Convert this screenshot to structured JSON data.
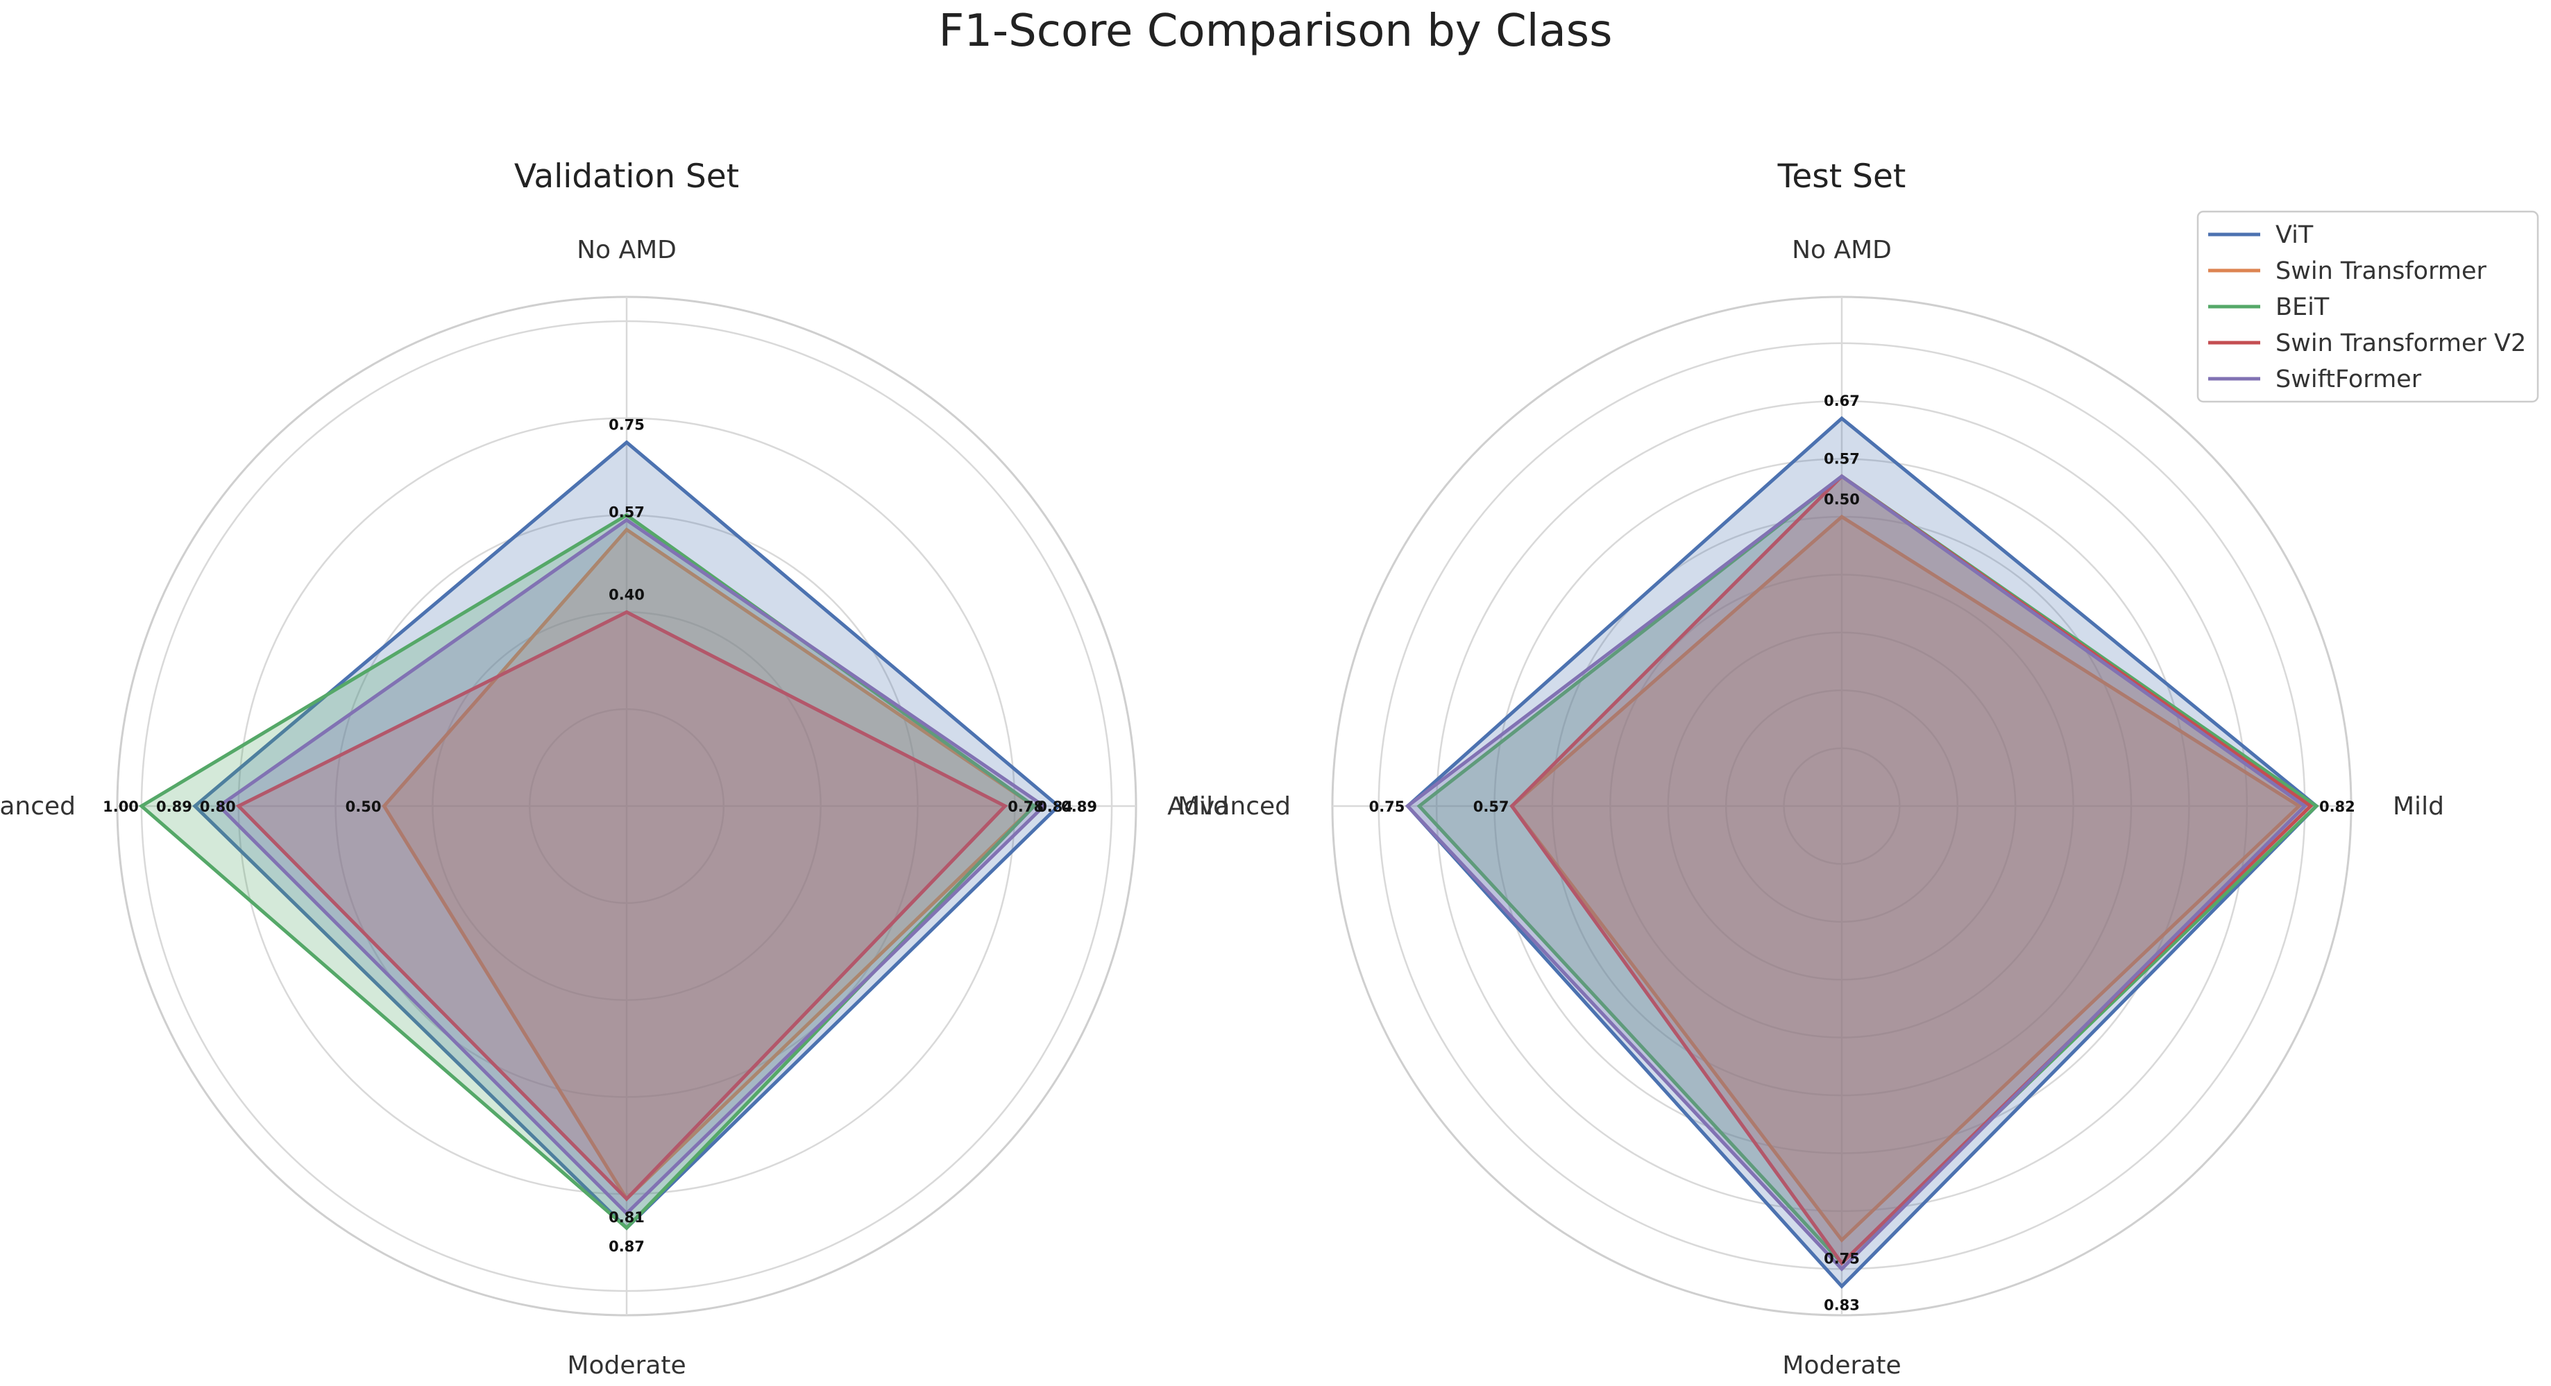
{
  "title": "F1-Score Comparison by Class",
  "chart_data": [
    {
      "type": "radar",
      "title": "Validation Set",
      "categories": [
        "No AMD",
        "Mild",
        "Moderate",
        "Advanced"
      ],
      "r_max": 1.05,
      "grid_rings": [
        0.2,
        0.4,
        0.6,
        0.8,
        1.0
      ],
      "grid": true,
      "series": [
        {
          "name": "ViT",
          "color": "#4C72B0",
          "values": [
            0.75,
            0.89,
            0.87,
            0.89
          ]
        },
        {
          "name": "Swin Transformer",
          "color": "#DD8452",
          "values": [
            0.57,
            0.84,
            0.81,
            0.5
          ]
        },
        {
          "name": "BEiT",
          "color": "#55A868",
          "values": [
            0.6,
            0.84,
            0.87,
            1.0
          ]
        },
        {
          "name": "Swin Transformer V2",
          "color": "#C44E52",
          "values": [
            0.4,
            0.78,
            0.81,
            0.8
          ]
        },
        {
          "name": "SwiftFormer",
          "color": "#8172B3",
          "values": [
            0.59,
            0.86,
            0.84,
            0.84
          ]
        }
      ],
      "annotations": [
        {
          "category": "No AMD",
          "value": 0.75,
          "text": "0.75"
        },
        {
          "category": "No AMD",
          "value": 0.57,
          "text": "0.57"
        },
        {
          "category": "No AMD",
          "value": 0.4,
          "text": "0.40"
        },
        {
          "category": "Mild",
          "value": 0.78,
          "text": "0.78"
        },
        {
          "category": "Mild",
          "value": 0.84,
          "text": "0.84"
        },
        {
          "category": "Mild",
          "value": 0.89,
          "text": "0.89"
        },
        {
          "category": "Moderate",
          "value": 0.81,
          "text": "0.81"
        },
        {
          "category": "Moderate",
          "value": 0.87,
          "text": "0.87"
        },
        {
          "category": "Advanced",
          "value": 1.0,
          "text": "1.00"
        },
        {
          "category": "Advanced",
          "value": 0.89,
          "text": "0.89"
        },
        {
          "category": "Advanced",
          "value": 0.8,
          "text": "0.80"
        },
        {
          "category": "Advanced",
          "value": 0.5,
          "text": "0.50"
        }
      ]
    },
    {
      "type": "radar",
      "title": "Test Set",
      "categories": [
        "No AMD",
        "Mild",
        "Moderate",
        "Advanced"
      ],
      "r_max": 0.88,
      "grid_rings": [
        0.1,
        0.2,
        0.3,
        0.4,
        0.5,
        0.6,
        0.7,
        0.8
      ],
      "grid": true,
      "series": [
        {
          "name": "ViT",
          "color": "#4C72B0",
          "values": [
            0.67,
            0.82,
            0.83,
            0.75
          ]
        },
        {
          "name": "Swin Transformer",
          "color": "#DD8452",
          "values": [
            0.5,
            0.79,
            0.75,
            0.57
          ]
        },
        {
          "name": "BEiT",
          "color": "#55A868",
          "values": [
            0.57,
            0.82,
            0.79,
            0.73
          ]
        },
        {
          "name": "Swin Transformer V2",
          "color": "#C44E52",
          "values": [
            0.57,
            0.81,
            0.79,
            0.57
          ]
        },
        {
          "name": "SwiftFormer",
          "color": "#8172B3",
          "values": [
            0.57,
            0.8,
            0.8,
            0.75
          ]
        }
      ],
      "annotations": [
        {
          "category": "No AMD",
          "value": 0.67,
          "text": "0.67"
        },
        {
          "category": "No AMD",
          "value": 0.57,
          "text": "0.57"
        },
        {
          "category": "No AMD",
          "value": 0.5,
          "text": "0.50"
        },
        {
          "category": "Mild",
          "value": 0.82,
          "text": "0.82"
        },
        {
          "category": "Moderate",
          "value": 0.75,
          "text": "0.75"
        },
        {
          "category": "Moderate",
          "value": 0.83,
          "text": "0.83"
        },
        {
          "category": "Advanced",
          "value": 0.75,
          "text": "0.75"
        },
        {
          "category": "Advanced",
          "value": 0.57,
          "text": "0.57"
        }
      ]
    }
  ],
  "legend": {
    "location": "top-right",
    "entries": [
      "ViT",
      "Swin Transformer",
      "BEiT",
      "Swin Transformer V2",
      "SwiftFormer"
    ],
    "colors": [
      "#4C72B0",
      "#DD8452",
      "#55A868",
      "#C44E52",
      "#8172B3"
    ]
  }
}
